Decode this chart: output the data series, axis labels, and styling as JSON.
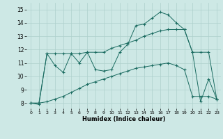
{
  "xlabel": "Humidex (Indice chaleur)",
  "background_color": "#cde8e5",
  "grid_color": "#aed0cc",
  "line_color": "#1a6b60",
  "x_ticks": [
    0,
    1,
    2,
    3,
    4,
    5,
    6,
    7,
    8,
    9,
    10,
    11,
    12,
    13,
    14,
    15,
    16,
    17,
    18,
    19,
    20,
    21,
    22,
    23
  ],
  "y_ticks": [
    8,
    9,
    10,
    11,
    12,
    13,
    14,
    15
  ],
  "ylim": [
    7.6,
    15.5
  ],
  "xlim": [
    -0.5,
    23.5
  ],
  "line1_x": [
    0,
    1,
    2,
    3,
    4,
    5,
    6,
    7,
    8,
    9,
    10,
    11,
    12,
    13,
    14,
    15,
    16,
    17,
    18,
    19,
    20,
    21,
    22,
    23
  ],
  "line1_y": [
    8.0,
    7.9,
    11.7,
    10.8,
    10.3,
    11.7,
    11.0,
    11.8,
    10.5,
    10.4,
    10.5,
    11.8,
    12.4,
    13.8,
    13.9,
    14.35,
    14.8,
    14.6,
    14.0,
    13.5,
    11.8,
    8.1,
    9.8,
    8.3
  ],
  "line2_x": [
    0,
    1,
    2,
    3,
    4,
    5,
    6,
    7,
    8,
    9,
    10,
    11,
    12,
    13,
    14,
    15,
    16,
    17,
    18,
    19,
    20,
    21,
    22,
    23
  ],
  "line2_y": [
    8.0,
    8.0,
    11.7,
    11.7,
    11.7,
    11.7,
    11.7,
    11.8,
    11.8,
    11.8,
    12.1,
    12.3,
    12.5,
    12.7,
    13.0,
    13.2,
    13.4,
    13.5,
    13.5,
    13.5,
    11.8,
    11.8,
    11.8,
    8.3
  ],
  "line3_x": [
    0,
    1,
    2,
    3,
    4,
    5,
    6,
    7,
    8,
    9,
    10,
    11,
    12,
    13,
    14,
    15,
    16,
    17,
    18,
    19,
    20,
    21,
    22,
    23
  ],
  "line3_y": [
    8.0,
    8.0,
    8.1,
    8.3,
    8.5,
    8.8,
    9.1,
    9.4,
    9.6,
    9.8,
    10.0,
    10.2,
    10.4,
    10.6,
    10.7,
    10.8,
    10.9,
    11.0,
    10.8,
    10.5,
    8.5,
    8.5,
    8.5,
    8.3
  ],
  "figsize": [
    3.2,
    2.0
  ],
  "dpi": 100
}
